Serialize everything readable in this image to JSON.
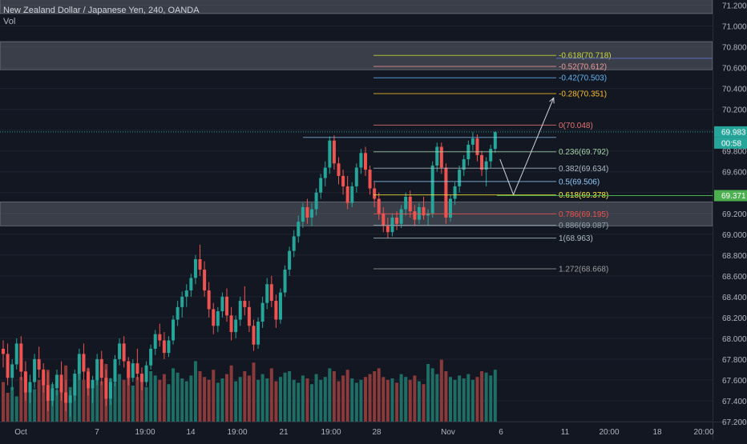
{
  "header": {
    "title": "New Zealand Dollar / Japanese Yen, 240, OANDA",
    "indicator": "Vol"
  },
  "colors": {
    "background": "#131722",
    "grid": "#1f2330",
    "axis_text": "#b2b5be",
    "up": "#26a69a",
    "down": "#ef5350",
    "vol_up": "#1e6e66",
    "vol_down": "#8a3a3a",
    "zone": "#6b6e77",
    "price_label": "#26a69a",
    "level_label": "#4caf50"
  },
  "price_axis": {
    "ticks": [
      "71.200",
      "71.000",
      "70.800",
      "70.600",
      "70.400",
      "70.200",
      "70.000",
      "69.800",
      "69.600",
      "69.400",
      "69.200",
      "69.000",
      "68.800",
      "68.600",
      "68.400",
      "68.200",
      "68.000",
      "67.800",
      "67.600",
      "67.400",
      "67.200"
    ],
    "current_price": "69.983",
    "countdown": "00:58",
    "level_price": "69.371"
  },
  "time_axis": {
    "ticks": [
      "Oct",
      "7",
      "19:00",
      "14",
      "19:00",
      "21",
      "19:00",
      "28",
      "Nov",
      "6",
      "11",
      "20:00",
      "18",
      "20:00"
    ]
  },
  "chart_data": {
    "type": "candlestick",
    "symbol": "New Zealand Dollar / Japanese Yen",
    "interval": "240",
    "exchange": "OANDA",
    "ylim": [
      67.2,
      71.25
    ],
    "candles": [
      [
        67.9,
        67.98,
        67.72,
        67.85
      ],
      [
        67.85,
        67.95,
        67.55,
        67.62
      ],
      [
        67.62,
        67.8,
        67.5,
        67.75
      ],
      [
        67.75,
        68.0,
        67.7,
        67.95
      ],
      [
        67.95,
        68.02,
        67.6,
        67.68
      ],
      [
        67.68,
        67.78,
        67.4,
        67.48
      ],
      [
        67.48,
        67.65,
        67.38,
        67.58
      ],
      [
        67.58,
        67.85,
        67.52,
        67.8
      ],
      [
        67.8,
        67.92,
        67.62,
        67.7
      ],
      [
        67.7,
        67.76,
        67.48,
        67.55
      ],
      [
        67.55,
        67.68,
        67.3,
        67.4
      ],
      [
        67.4,
        67.58,
        67.35,
        67.52
      ],
      [
        67.52,
        67.7,
        67.45,
        67.65
      ],
      [
        67.65,
        67.78,
        67.4,
        67.48
      ],
      [
        67.48,
        67.6,
        67.3,
        67.38
      ],
      [
        67.38,
        67.5,
        67.25,
        67.45
      ],
      [
        67.45,
        67.7,
        67.4,
        67.66
      ],
      [
        67.66,
        67.9,
        67.6,
        67.85
      ],
      [
        67.85,
        67.95,
        67.6,
        67.68
      ],
      [
        67.68,
        67.72,
        67.45,
        67.52
      ],
      [
        67.52,
        67.64,
        67.38,
        67.6
      ],
      [
        67.6,
        67.85,
        67.55,
        67.8
      ],
      [
        67.8,
        67.88,
        67.55,
        67.62
      ],
      [
        67.62,
        67.7,
        67.35,
        67.42
      ],
      [
        67.42,
        67.62,
        67.36,
        67.58
      ],
      [
        67.58,
        67.84,
        67.54,
        67.8
      ],
      [
        67.8,
        68.0,
        67.74,
        67.95
      ],
      [
        67.95,
        68.02,
        67.72,
        67.78
      ],
      [
        67.78,
        67.82,
        67.55,
        67.62
      ],
      [
        67.62,
        67.8,
        67.58,
        67.76
      ],
      [
        67.76,
        67.9,
        67.6,
        67.66
      ],
      [
        67.66,
        67.72,
        67.5,
        67.58
      ],
      [
        67.58,
        67.78,
        67.54,
        67.74
      ],
      [
        67.74,
        67.94,
        67.7,
        67.9
      ],
      [
        67.9,
        68.08,
        67.84,
        68.04
      ],
      [
        68.04,
        68.14,
        67.92,
        67.98
      ],
      [
        67.98,
        68.06,
        67.8,
        67.86
      ],
      [
        67.86,
        68.02,
        67.82,
        67.98
      ],
      [
        67.98,
        68.22,
        67.94,
        68.18
      ],
      [
        68.18,
        68.36,
        68.12,
        68.3
      ],
      [
        68.3,
        68.45,
        68.2,
        68.4
      ],
      [
        68.4,
        68.52,
        68.3,
        68.46
      ],
      [
        68.46,
        68.62,
        68.4,
        68.58
      ],
      [
        68.58,
        68.8,
        68.52,
        68.76
      ],
      [
        68.76,
        68.9,
        68.6,
        68.66
      ],
      [
        68.66,
        68.74,
        68.4,
        68.46
      ],
      [
        68.46,
        68.54,
        68.2,
        68.28
      ],
      [
        68.28,
        68.34,
        68.04,
        68.12
      ],
      [
        68.12,
        68.3,
        68.06,
        68.26
      ],
      [
        68.26,
        68.44,
        68.2,
        68.4
      ],
      [
        68.4,
        68.48,
        68.16,
        68.22
      ],
      [
        68.22,
        68.3,
        67.98,
        68.06
      ],
      [
        68.06,
        68.22,
        68.0,
        68.18
      ],
      [
        68.18,
        68.4,
        68.12,
        68.36
      ],
      [
        68.36,
        68.5,
        68.22,
        68.3
      ],
      [
        68.3,
        68.36,
        68.06,
        68.12
      ],
      [
        68.12,
        68.18,
        67.88,
        67.94
      ],
      [
        67.94,
        68.2,
        67.9,
        68.16
      ],
      [
        68.16,
        68.4,
        68.1,
        68.34
      ],
      [
        68.34,
        68.58,
        68.28,
        68.52
      ],
      [
        68.52,
        68.6,
        68.3,
        68.36
      ],
      [
        68.36,
        68.42,
        68.1,
        68.18
      ],
      [
        68.18,
        68.48,
        68.14,
        68.44
      ],
      [
        68.44,
        68.7,
        68.4,
        68.66
      ],
      [
        68.66,
        68.88,
        68.6,
        68.84
      ],
      [
        68.84,
        69.04,
        68.78,
        68.98
      ],
      [
        68.98,
        69.18,
        68.92,
        69.12
      ],
      [
        69.12,
        69.3,
        69.06,
        69.26
      ],
      [
        69.26,
        69.34,
        69.1,
        69.16
      ],
      [
        69.16,
        69.3,
        69.08,
        69.24
      ],
      [
        69.24,
        69.44,
        69.18,
        69.4
      ],
      [
        69.4,
        69.58,
        69.34,
        69.54
      ],
      [
        69.54,
        69.7,
        69.46,
        69.64
      ],
      [
        69.64,
        69.94,
        69.58,
        69.9
      ],
      [
        69.9,
        69.95,
        69.62,
        69.68
      ],
      [
        69.68,
        69.74,
        69.48,
        69.56
      ],
      [
        69.56,
        69.62,
        69.38,
        69.46
      ],
      [
        69.46,
        69.56,
        69.24,
        69.3
      ],
      [
        69.3,
        69.5,
        69.26,
        69.46
      ],
      [
        69.46,
        69.68,
        69.4,
        69.64
      ],
      [
        69.64,
        69.82,
        69.58,
        69.78
      ],
      [
        69.78,
        69.84,
        69.56,
        69.62
      ],
      [
        69.62,
        69.66,
        69.38,
        69.44
      ],
      [
        69.44,
        69.5,
        69.26,
        69.34
      ],
      [
        69.34,
        69.4,
        69.14,
        69.2
      ],
      [
        69.2,
        69.26,
        69.02,
        69.08
      ],
      [
        69.08,
        69.16,
        68.96,
        69.02
      ],
      [
        69.02,
        69.2,
        68.98,
        69.16
      ],
      [
        69.16,
        69.22,
        69.04,
        69.1
      ],
      [
        69.1,
        69.28,
        69.06,
        69.24
      ],
      [
        69.24,
        69.4,
        69.18,
        69.36
      ],
      [
        69.36,
        69.42,
        69.16,
        69.22
      ],
      [
        69.22,
        69.28,
        69.08,
        69.14
      ],
      [
        69.14,
        69.3,
        69.1,
        69.26
      ],
      [
        69.26,
        69.36,
        69.14,
        69.18
      ],
      [
        69.18,
        69.24,
        69.08,
        69.2
      ],
      [
        69.2,
        69.7,
        69.16,
        69.66
      ],
      [
        69.66,
        69.88,
        69.6,
        69.84
      ],
      [
        69.84,
        69.88,
        69.58,
        69.64
      ],
      [
        69.64,
        69.68,
        69.1,
        69.16
      ],
      [
        69.16,
        69.38,
        69.12,
        69.34
      ],
      [
        69.34,
        69.5,
        69.28,
        69.46
      ],
      [
        69.46,
        69.66,
        69.4,
        69.62
      ],
      [
        69.62,
        69.76,
        69.56,
        69.72
      ],
      [
        69.72,
        69.9,
        69.66,
        69.86
      ],
      [
        69.86,
        69.98,
        69.8,
        69.92
      ],
      [
        69.92,
        69.96,
        69.7,
        69.76
      ],
      [
        69.76,
        69.8,
        69.56,
        69.62
      ],
      [
        69.62,
        69.74,
        69.46,
        69.7
      ],
      [
        69.7,
        69.86,
        69.64,
        69.82
      ],
      [
        69.82,
        69.99,
        69.78,
        69.98
      ]
    ],
    "volumes": [
      0.55,
      0.4,
      0.48,
      0.35,
      0.62,
      0.7,
      0.5,
      0.45,
      0.58,
      0.66,
      0.72,
      0.52,
      0.44,
      0.6,
      0.78,
      0.48,
      0.55,
      0.68,
      0.58,
      0.74,
      0.5,
      0.62,
      0.56,
      0.8,
      0.6,
      0.54,
      0.66,
      0.58,
      0.72,
      0.5,
      0.62,
      0.56,
      0.48,
      0.7,
      0.64,
      0.58,
      0.66,
      0.52,
      0.74,
      0.68,
      0.6,
      0.56,
      0.64,
      0.84,
      0.7,
      0.62,
      0.58,
      0.72,
      0.54,
      0.6,
      0.66,
      0.78,
      0.56,
      0.62,
      0.7,
      0.64,
      0.82,
      0.58,
      0.66,
      0.6,
      0.74,
      0.56,
      0.62,
      0.68,
      0.7,
      0.58,
      0.54,
      0.64,
      0.6,
      0.52,
      0.66,
      0.58,
      0.62,
      0.74,
      0.7,
      0.56,
      0.64,
      0.72,
      0.6,
      0.54,
      0.58,
      0.62,
      0.66,
      0.7,
      0.74,
      0.62,
      0.58,
      0.6,
      0.54,
      0.66,
      0.62,
      0.58,
      0.64,
      0.56,
      0.52,
      0.8,
      0.74,
      0.66,
      0.86,
      0.7,
      0.62,
      0.58,
      0.64,
      0.6,
      0.66,
      0.58,
      0.62,
      0.7,
      0.68,
      0.64,
      0.72
    ],
    "zones": [
      {
        "y1": 71.33,
        "y2": 71.12
      },
      {
        "y1": 70.85,
        "y2": 70.58
      },
      {
        "y1": 69.31,
        "y2": 69.08
      }
    ],
    "fibonacci": {
      "levels": [
        {
          "label": "-0.618(70.718)",
          "price": 70.718,
          "color": "#cddc39"
        },
        {
          "label": "-0.52(70.612)",
          "price": 70.612,
          "color": "#ef9a9a"
        },
        {
          "label": "-0.42(70.503)",
          "price": 70.503,
          "color": "#64b5f6"
        },
        {
          "label": "-0.28(70.351)",
          "price": 70.351,
          "color": "#fbc02d"
        },
        {
          "label": "0(70.048)",
          "price": 70.048,
          "color": "#e57373"
        },
        {
          "label": "0.236(69.792)",
          "price": 69.792,
          "color": "#a5d6a7"
        },
        {
          "label": "0.382(69.634)",
          "price": 69.634,
          "color": "#b0bec5"
        },
        {
          "label": "0.5(69.506)",
          "price": 69.506,
          "color": "#90caf9"
        },
        {
          "label": "0.618(69.378)",
          "price": 69.378,
          "color": "#ffeb3b"
        },
        {
          "label": "0.786(69.195)",
          "price": 69.195,
          "color": "#ef5350"
        },
        {
          "label": "0.886(69.087)",
          "price": 69.087,
          "color": "#90a4ae"
        },
        {
          "label": "1(68.963)",
          "price": 68.963,
          "color": "#b0bec5"
        },
        {
          "label": "1.272(68.668)",
          "price": 68.668,
          "color": "#9e9e9e"
        }
      ]
    },
    "horizontal_lines": [
      {
        "price": 69.983,
        "style": "dotted",
        "color": "#26a69a"
      },
      {
        "price": 69.371,
        "style": "solid",
        "color": "#4caf50"
      },
      {
        "price": 70.69,
        "style": "solid",
        "color": "#5c6bc0"
      }
    ],
    "projection_path": [
      {
        "candle_offset": 0,
        "price": 69.72
      },
      {
        "candle_offset": 3,
        "price": 69.38
      },
      {
        "candle_offset": 12,
        "price": 70.31
      }
    ]
  }
}
